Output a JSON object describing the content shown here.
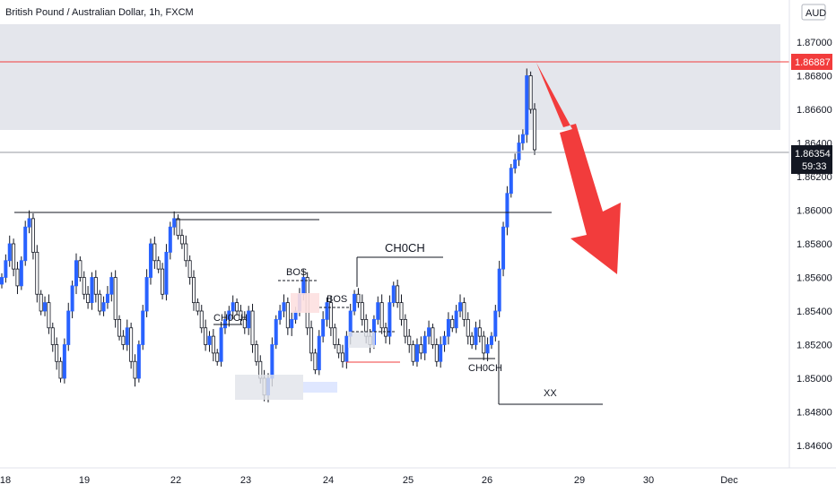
{
  "header": {
    "title": "British Pound / Australian Dollar, 1h, FXCM"
  },
  "currency_badge": "AUD",
  "colors": {
    "up": "#2962ff",
    "down": "#ffffff",
    "wick": "#131722",
    "arrow": "#f23c3c",
    "zone": "#e1e3ea",
    "last_price": "#131722",
    "level_line": "#f23c3c"
  },
  "price_labels": {
    "level": "1.86887",
    "last": "1.86354",
    "countdown": "59:33"
  },
  "annotations": {
    "choch_big": "CH0CH",
    "bos_1": "BOS",
    "bos_2": "BOS",
    "choch_left": "CH0CH",
    "choch_right": "CH0CH",
    "xx": "XX"
  },
  "chart_data": {
    "type": "candlestick",
    "title": "British Pound / Australian Dollar, 1h, FXCM",
    "y_ticks": [
      "1.87000",
      "1.86800",
      "1.86600",
      "1.86400",
      "1.86200",
      "1.86000",
      "1.85800",
      "1.85600",
      "1.85400",
      "1.85200",
      "1.85000",
      "1.84800",
      "1.84600"
    ],
    "x_ticks": [
      "18",
      "19",
      "22",
      "23",
      "24",
      "25",
      "26",
      "29",
      "30",
      "Dec"
    ],
    "ylim": [
      1.8448,
      1.8718
    ],
    "supply_zone": [
      1.865,
      1.8718
    ],
    "key_levels": [
      1.86887,
      1.86354,
      1.86
    ],
    "candles_close": [
      1.856,
      1.857,
      1.858,
      1.8565,
      1.8555,
      1.857,
      1.859,
      1.8595,
      1.8575,
      1.855,
      1.854,
      1.8545,
      1.853,
      1.852,
      1.851,
      1.85,
      1.852,
      1.854,
      1.8555,
      1.857,
      1.856,
      1.855,
      1.8545,
      1.856,
      1.855,
      1.854,
      1.8545,
      1.855,
      1.856,
      1.8535,
      1.8525,
      1.852,
      1.853,
      1.851,
      1.85,
      1.852,
      1.854,
      1.856,
      1.858,
      1.857,
      1.8565,
      1.855,
      1.8575,
      1.859,
      1.8595,
      1.8585,
      1.858,
      1.857,
      1.856,
      1.8545,
      1.854,
      1.853,
      1.852,
      1.8525,
      1.8515,
      1.851,
      1.853,
      1.8535,
      1.854,
      1.8545,
      1.854,
      1.8535,
      1.853,
      1.854,
      1.852,
      1.851,
      1.85,
      1.849,
      1.85,
      1.852,
      1.8535,
      1.854,
      1.8545,
      1.853,
      1.8535,
      1.854,
      1.855,
      1.856,
      1.853,
      1.8515,
      1.8505,
      1.8525,
      1.8535,
      1.8545,
      1.853,
      1.852,
      1.8515,
      1.851,
      1.8525,
      1.854,
      1.855,
      1.8545,
      1.8535,
      1.8525,
      1.852,
      1.8535,
      1.8545,
      1.853,
      1.8525,
      1.8545,
      1.8555,
      1.8545,
      1.8535,
      1.8525,
      1.852,
      1.851,
      1.852,
      1.8515,
      1.8525,
      1.853,
      1.852,
      1.851,
      1.852,
      1.8525,
      1.8535,
      1.853,
      1.854,
      1.8545,
      1.8535,
      1.8525,
      1.852,
      1.853,
      1.8525,
      1.8515,
      1.852,
      1.8525,
      1.854,
      1.8565,
      1.859,
      1.861,
      1.8625,
      1.863,
      1.864,
      1.8645,
      1.868,
      1.866,
      1.8636
    ]
  }
}
